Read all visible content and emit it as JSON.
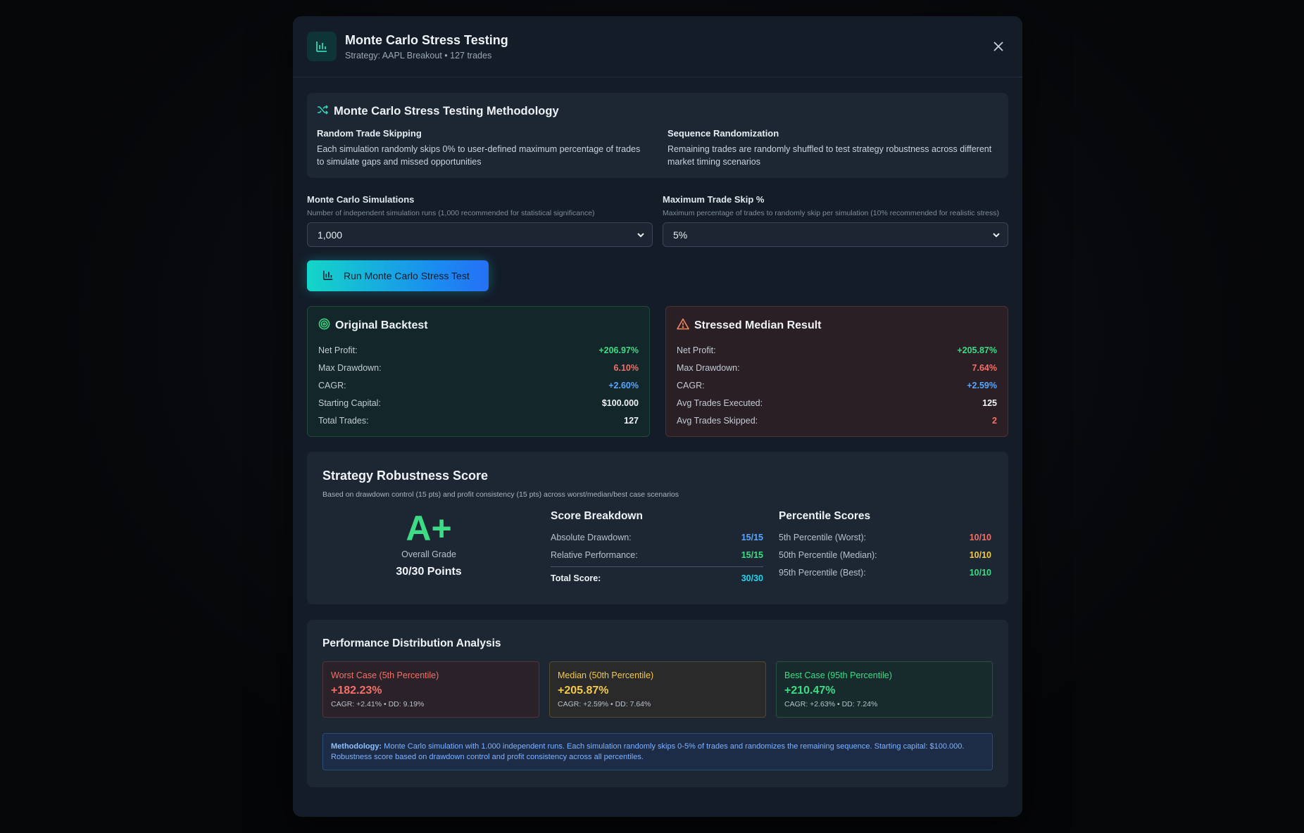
{
  "header": {
    "title": "Monte Carlo Stress Testing",
    "subtitle": "Strategy: AAPL Breakout • 127 trades"
  },
  "methodology": {
    "title": "Monte Carlo Stress Testing Methodology",
    "col1_title": "Random Trade Skipping",
    "col1_text": "Each simulation randomly skips 0% to user-defined maximum percentage of trades to simulate gaps and missed opportunities",
    "col2_title": "Sequence Randomization",
    "col2_text": "Remaining trades are randomly shuffled to test strategy robustness across different market timing scenarios"
  },
  "form": {
    "sims_label": "Monte Carlo Simulations",
    "sims_help": "Number of independent simulation runs (1,000 recommended for statistical significance)",
    "sims_value": "1,000",
    "skip_label": "Maximum Trade Skip %",
    "skip_help": "Maximum percentage of trades to randomly skip per simulation (10% recommended for realistic stress)",
    "skip_value": "5%"
  },
  "run_button": "Run Monte Carlo Stress Test",
  "original": {
    "title": "Original Backtest",
    "rows": [
      {
        "k": "Net Profit:",
        "v": "+206.97%"
      },
      {
        "k": "Max Drawdown:",
        "v": "6.10%"
      },
      {
        "k": "CAGR:",
        "v": "+2.60%"
      },
      {
        "k": "Starting Capital:",
        "v": "$100.000"
      },
      {
        "k": "Total Trades:",
        "v": "127"
      }
    ]
  },
  "stressed": {
    "title": "Stressed Median Result",
    "rows": [
      {
        "k": "Net Profit:",
        "v": "+205.87%"
      },
      {
        "k": "Max Drawdown:",
        "v": "7.64%"
      },
      {
        "k": "CAGR:",
        "v": "+2.59%"
      },
      {
        "k": "Avg Trades Executed:",
        "v": "125"
      },
      {
        "k": "Avg Trades Skipped:",
        "v": "2"
      }
    ]
  },
  "robustness": {
    "title": "Strategy Robustness Score",
    "subtitle": "Based on drawdown control (15 pts) and profit consistency (15 pts) across worst/median/best case scenarios",
    "grade": "A+",
    "grade_label": "Overall Grade",
    "points": "30/30 Points",
    "breakdown_title": "Score Breakdown",
    "breakdown": [
      {
        "k": "Absolute Drawdown:",
        "v": "15/15"
      },
      {
        "k": "Relative Performance:",
        "v": "15/15"
      }
    ],
    "total_label": "Total Score:",
    "total_value": "30/30",
    "percentile_title": "Percentile Scores",
    "percentiles": [
      {
        "k": "5th Percentile (Worst):",
        "v": "10/10"
      },
      {
        "k": "50th Percentile (Median):",
        "v": "10/10"
      },
      {
        "k": "95th Percentile (Best):",
        "v": "10/10"
      }
    ]
  },
  "distribution": {
    "title": "Performance Distribution Analysis",
    "cards": [
      {
        "label": "Worst Case (5th Percentile)",
        "value": "+182.23%",
        "meta": "CAGR: +2.41% • DD: 9.19%"
      },
      {
        "label": "Median (50th Percentile)",
        "value": "+205.87%",
        "meta": "CAGR: +2.59% • DD: 7.64%"
      },
      {
        "label": "Best Case (95th Percentile)",
        "value": "+210.47%",
        "meta": "CAGR: +2.63% • DD: 7.24%"
      }
    ],
    "note_label": "Methodology:",
    "note_text": " Monte Carlo simulation with 1.000 independent runs. Each simulation randomly skips 0-5% of trades and randomizes the remaining sequence. Starting capital: $100.000. Robustness score based on drawdown control and profit consistency across all percentiles."
  },
  "colors": {
    "accent_teal": "#14d6c8",
    "positive": "#3ddc84",
    "negative": "#f47067",
    "info": "#58a6ff",
    "warning": "#f2c94c"
  }
}
